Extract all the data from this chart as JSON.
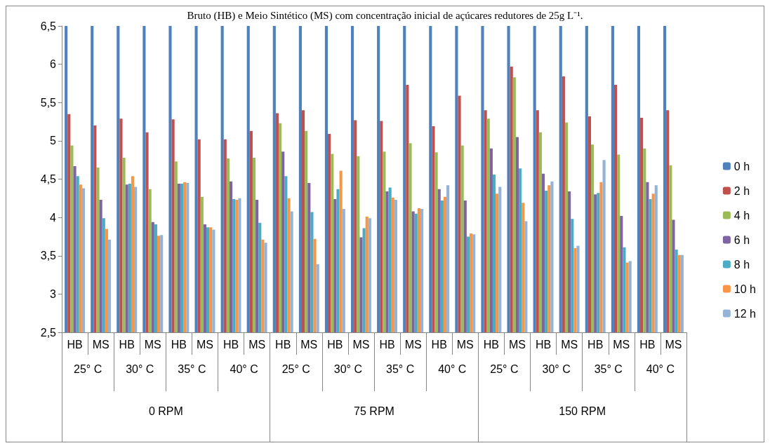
{
  "chart_data": {
    "type": "bar",
    "title": "Bruto (HB) e Meio Sintético (MS) com concentração inicial de açúcares redutores de 25g L⁻¹.",
    "categories": [
      "HB",
      "MS",
      "HB",
      "MS",
      "HB",
      "MS",
      "HB",
      "MS",
      "HB",
      "MS",
      "HB",
      "MS",
      "HB",
      "MS",
      "HB",
      "MS",
      "HB",
      "MS",
      "HB",
      "MS",
      "HB",
      "MS",
      "HB",
      "MS"
    ],
    "annotations": [
      "25° C",
      "30° C",
      "35° C",
      "40° C",
      "25° C",
      "30° C",
      "35° C",
      "40° C",
      "25° C",
      "30° C",
      "35° C",
      "40° C",
      "0 RPM",
      "75 RPM",
      "150 RPM"
    ],
    "series": [
      {
        "name": "0 h",
        "color": "#4f81bd",
        "values": [
          6.5,
          6.5,
          6.5,
          6.5,
          6.5,
          6.5,
          6.5,
          6.5,
          6.5,
          6.5,
          6.5,
          6.5,
          6.5,
          6.5,
          6.5,
          6.5,
          6.5,
          6.5,
          6.5,
          6.5,
          6.5,
          6.5,
          6.5,
          6.5
        ]
      },
      {
        "name": "2 h",
        "color": "#c0504d",
        "values": [
          5.35,
          5.2,
          5.29,
          5.11,
          5.28,
          5.02,
          5.02,
          5.13,
          5.36,
          5.4,
          5.09,
          5.27,
          5.26,
          5.73,
          5.19,
          5.59,
          5.4,
          5.97,
          5.4,
          5.84,
          5.32,
          5.73,
          5.3,
          5.4
        ]
      },
      {
        "name": "4 h",
        "color": "#9bbb59",
        "values": [
          4.94,
          4.65,
          4.78,
          4.37,
          4.73,
          4.27,
          4.77,
          4.78,
          5.23,
          5.13,
          4.83,
          4.8,
          4.86,
          4.97,
          4.85,
          4.94,
          5.29,
          5.83,
          5.11,
          5.24,
          4.95,
          4.82,
          4.9,
          4.68
        ]
      },
      {
        "name": "6 h",
        "color": "#8064a2",
        "values": [
          4.67,
          4.23,
          4.43,
          3.94,
          4.44,
          3.91,
          4.47,
          4.23,
          4.86,
          4.45,
          4.24,
          3.74,
          4.34,
          4.08,
          4.37,
          4.22,
          4.9,
          5.05,
          4.57,
          4.34,
          4.3,
          4.02,
          4.46,
          3.97
        ]
      },
      {
        "name": "8 h",
        "color": "#4bacc6",
        "values": [
          4.54,
          3.99,
          4.44,
          3.91,
          4.44,
          3.87,
          4.24,
          3.93,
          4.54,
          4.07,
          4.37,
          3.86,
          4.39,
          4.05,
          4.22,
          3.75,
          4.56,
          4.64,
          4.35,
          3.98,
          4.32,
          3.61,
          4.24,
          3.58
        ]
      },
      {
        "name": "10 h",
        "color": "#f79646",
        "values": [
          4.43,
          3.85,
          4.54,
          3.76,
          4.46,
          3.87,
          4.23,
          3.71,
          4.25,
          3.72,
          4.61,
          4.01,
          4.26,
          4.12,
          4.27,
          3.79,
          4.31,
          4.19,
          4.42,
          3.6,
          4.46,
          3.41,
          4.31,
          3.51
        ]
      },
      {
        "name": "12 h",
        "color": "#95b3d7",
        "values": [
          4.38,
          3.71,
          4.4,
          3.77,
          4.45,
          3.84,
          4.25,
          3.67,
          4.08,
          3.39,
          4.11,
          3.99,
          4.23,
          4.11,
          4.42,
          3.78,
          4.4,
          3.95,
          4.47,
          3.63,
          4.75,
          3.43,
          4.42,
          3.51
        ]
      }
    ],
    "ylim": [
      2.5,
      6.5
    ],
    "yticks": [
      {
        "value": 2.5,
        "label": "2,5"
      },
      3,
      {
        "value": 3.5,
        "label": "3,5"
      },
      4,
      {
        "value": 4.5,
        "label": "4,5"
      },
      5,
      {
        "value": 5.5,
        "label": "5,5"
      },
      6,
      {
        "value": 6.5,
        "label": "6,5"
      }
    ],
    "grid": false,
    "legend": "right"
  }
}
